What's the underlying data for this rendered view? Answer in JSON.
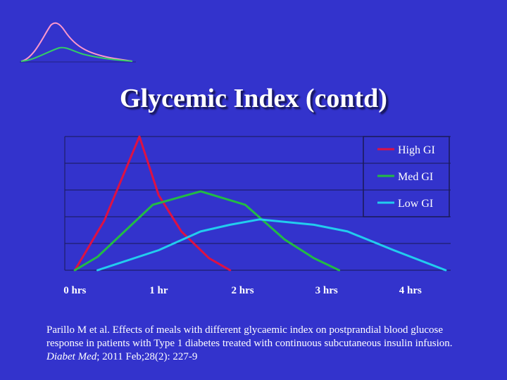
{
  "slide": {
    "title": "Glycemic Index (contd)",
    "citation": {
      "text_before": "Parillo M et al. Effects of meals with different glycaemic index on postprandial blood glucose response in patients with Type 1 diabetes treated with continuous subcutaneous insulin infusion. ",
      "journal": "Diabet Med",
      "text_after": "; 2011 Feb;28(2): 227-9"
    }
  },
  "colors": {
    "background": "#3333cc",
    "high": "#dd1144",
    "med": "#22bb44",
    "low": "#22ccee",
    "logo_high": "#ff99cc",
    "logo_med": "#33cc66"
  },
  "chart_data": {
    "type": "line",
    "title": "",
    "xlabel": "",
    "ylabel": "",
    "x_ticks": [
      {
        "value": 0,
        "label": "0 hrs"
      },
      {
        "value": 1,
        "label": "1 hr"
      },
      {
        "value": 2,
        "label": "2 hrs"
      },
      {
        "value": 3,
        "label": "3 hrs"
      },
      {
        "value": 4,
        "label": "4 hrs"
      }
    ],
    "xlim": [
      -0.12,
      4.48
    ],
    "ylim": [
      0,
      100
    ],
    "y_gridlines": [
      0,
      20,
      40,
      60,
      80,
      100
    ],
    "grid": true,
    "legend": "top-right",
    "series": [
      {
        "name": "High GI",
        "color": "#dd1144",
        "points": [
          [
            0.0,
            0
          ],
          [
            0.35,
            37
          ],
          [
            0.77,
            100
          ],
          [
            1.0,
            56
          ],
          [
            1.27,
            29
          ],
          [
            1.6,
            9
          ],
          [
            1.85,
            0
          ]
        ]
      },
      {
        "name": "Med GI",
        "color": "#22bb44",
        "points": [
          [
            0.0,
            0
          ],
          [
            0.27,
            10
          ],
          [
            0.93,
            49
          ],
          [
            1.5,
            59
          ],
          [
            2.03,
            49
          ],
          [
            2.5,
            23
          ],
          [
            2.85,
            9
          ],
          [
            3.15,
            0
          ]
        ]
      },
      {
        "name": "Low GI",
        "color": "#22ccee",
        "points": [
          [
            0.27,
            0
          ],
          [
            1.0,
            15
          ],
          [
            1.5,
            29
          ],
          [
            1.85,
            34
          ],
          [
            2.2,
            38
          ],
          [
            2.85,
            34
          ],
          [
            3.25,
            29
          ],
          [
            3.8,
            15
          ],
          [
            4.42,
            0
          ]
        ]
      }
    ]
  }
}
